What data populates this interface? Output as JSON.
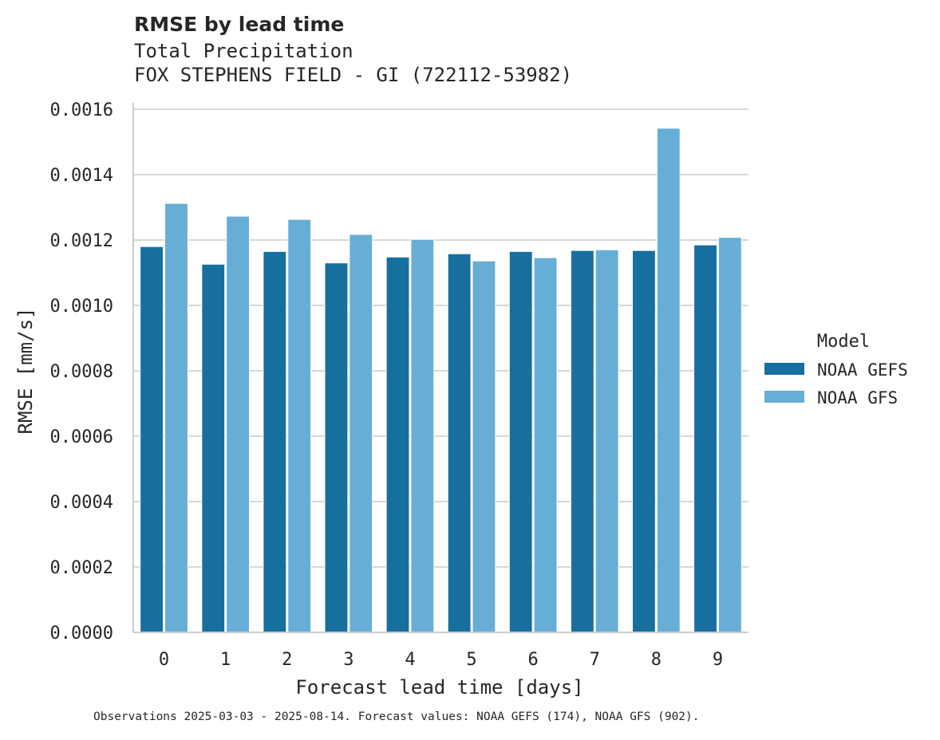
{
  "header": {
    "title": "RMSE by lead time",
    "subtitle_line1": "Total Precipitation",
    "subtitle_line2": "FOX STEPHENS FIELD - GI (722112-53982)"
  },
  "footnote": "Observations 2025-03-03 - 2025-08-14. Forecast values: NOAA GEFS (174), NOAA GFS (902).",
  "colors": {
    "NOAA GEFS": "#176f9f",
    "NOAA GFS": "#67aed6",
    "grid": "#cccccc",
    "text": "#262626"
  },
  "chart_data": {
    "type": "bar",
    "title": "RMSE by lead time",
    "xlabel": "Forecast lead time [days]",
    "ylabel": "RMSE [mm/s]",
    "categories": [
      "0",
      "1",
      "2",
      "3",
      "4",
      "5",
      "6",
      "7",
      "8",
      "9"
    ],
    "ylim": [
      0,
      0.0016
    ],
    "yticks": [
      "0.0000",
      "0.0002",
      "0.0004",
      "0.0006",
      "0.0008",
      "0.0010",
      "0.0012",
      "0.0014",
      "0.0016"
    ],
    "grid": "horizontal",
    "legend": {
      "title": "Model",
      "position": "right"
    },
    "series": [
      {
        "name": "NOAA GEFS",
        "values": [
          0.00118,
          0.001126,
          0.001165,
          0.00113,
          0.001148,
          0.001158,
          0.001165,
          0.001168,
          0.001168,
          0.001185
        ]
      },
      {
        "name": "NOAA GFS",
        "values": [
          0.001312,
          0.001273,
          0.001263,
          0.001217,
          0.001202,
          0.001136,
          0.001146,
          0.00117,
          0.001542,
          0.001208
        ]
      }
    ]
  }
}
